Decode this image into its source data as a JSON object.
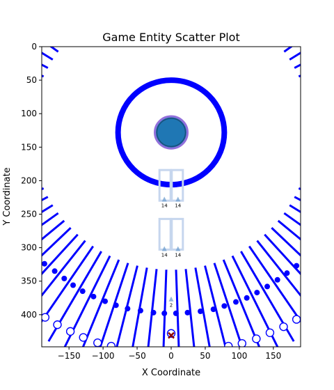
{
  "chart_data": {
    "type": "scatter",
    "title": "Game Entity Scatter Plot",
    "xlabel": "X Coordinate",
    "ylabel": "Y Coordinate",
    "xlim": [
      -190,
      190
    ],
    "ylim": [
      448,
      0
    ],
    "y_inverted": true,
    "grid": false,
    "x_ticks": [
      -150,
      -100,
      -50,
      0,
      50,
      100,
      150
    ],
    "y_ticks": [
      0,
      50,
      100,
      150,
      200,
      250,
      300,
      350,
      400
    ],
    "colors": {
      "primary": "#0000ff",
      "marker_fill": "#1f77b4",
      "marker_edge": "#9370db",
      "cross": "#8b0000",
      "arrow": "#6f9fcf",
      "ghost": "#c6d6ee"
    },
    "center": {
      "x": 0,
      "y": 128
    },
    "ring": {
      "center_x": 0,
      "center_y": 128,
      "radius": 78
    },
    "central_marker": {
      "x": 0,
      "y": 128
    },
    "radial_lines": {
      "center_x": 0,
      "center_y": 128,
      "inner_radius": 205,
      "outer_radius": 360,
      "step_deg": 4
    },
    "filled_dots": [
      {
        "x": -186,
        "y": 324
      },
      {
        "x": -171,
        "y": 335
      },
      {
        "x": -157,
        "y": 346
      },
      {
        "x": -144,
        "y": 356
      },
      {
        "x": -130,
        "y": 365
      },
      {
        "x": -114,
        "y": 373
      },
      {
        "x": -97,
        "y": 380
      },
      {
        "x": -81,
        "y": 386
      },
      {
        "x": -64,
        "y": 391
      },
      {
        "x": -45,
        "y": 394
      },
      {
        "x": -26,
        "y": 397
      },
      {
        "x": -10,
        "y": 398
      },
      {
        "x": 7,
        "y": 398
      },
      {
        "x": 24,
        "y": 397
      },
      {
        "x": 43,
        "y": 395
      },
      {
        "x": 62,
        "y": 392
      },
      {
        "x": 78,
        "y": 387
      },
      {
        "x": 95,
        "y": 381
      },
      {
        "x": 111,
        "y": 375
      },
      {
        "x": 126,
        "y": 367
      },
      {
        "x": 141,
        "y": 358
      },
      {
        "x": 156,
        "y": 348
      },
      {
        "x": 170,
        "y": 338
      },
      {
        "x": 184,
        "y": 327
      }
    ],
    "open_dots": [
      {
        "x": -185,
        "y": 404
      },
      {
        "x": -167,
        "y": 415
      },
      {
        "x": -148,
        "y": 425
      },
      {
        "x": -129,
        "y": 434
      },
      {
        "x": -108,
        "y": 442
      },
      {
        "x": -88,
        "y": 447
      },
      {
        "x": 0,
        "y": 428
      },
      {
        "x": 84,
        "y": 447
      },
      {
        "x": 104,
        "y": 443
      },
      {
        "x": 125,
        "y": 436
      },
      {
        "x": 145,
        "y": 427
      },
      {
        "x": 165,
        "y": 418
      },
      {
        "x": 184,
        "y": 407
      }
    ],
    "cross_marker": {
      "x": 0,
      "y": 431
    },
    "arrow_markers": [
      {
        "x": -10,
        "y": 228,
        "label": "14"
      },
      {
        "x": 10,
        "y": 228,
        "label": "14"
      },
      {
        "x": -10,
        "y": 302,
        "label": "14"
      },
      {
        "x": 10,
        "y": 302,
        "label": "14"
      },
      {
        "x": 0,
        "y": 377,
        "label": "2"
      }
    ],
    "ghost_icons": [
      {
        "x": -9,
        "y": 207
      },
      {
        "x": 9,
        "y": 207
      },
      {
        "x": -9,
        "y": 280
      },
      {
        "x": 9,
        "y": 280
      }
    ]
  }
}
